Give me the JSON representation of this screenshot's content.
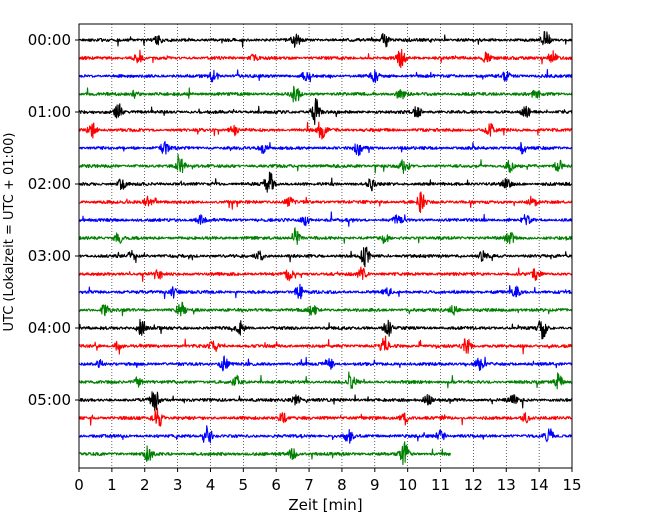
{
  "chart_data": {
    "type": "line",
    "xlabel": "Zeit  [min]",
    "ylabel": "UTC (Lokalzeit = UTC + 01:00)",
    "xlim": [
      0,
      15
    ],
    "x_ticks": [
      0,
      1,
      2,
      3,
      4,
      5,
      6,
      7,
      8,
      9,
      10,
      11,
      12,
      13,
      14,
      15
    ],
    "y_tick_labels": [
      {
        "label": "00:00",
        "trace": 0
      },
      {
        "label": "01:00",
        "trace": 4
      },
      {
        "label": "02:00",
        "trace": 8
      },
      {
        "label": "03:00",
        "trace": 12
      },
      {
        "label": "04:00",
        "trace": 16
      },
      {
        "label": "05:00",
        "trace": 20
      }
    ],
    "grid": "vertical dotted at each minute",
    "trace_colors": [
      "#000000",
      "#ff0000",
      "#0000ff",
      "#008000"
    ],
    "traces": [
      {
        "start": "00:00",
        "color": "#000000",
        "duration_min": 15,
        "events": [
          [
            2.4,
            0.4
          ],
          [
            6.6,
            0.7
          ],
          [
            9.3,
            0.8
          ],
          [
            14.2,
            0.9
          ]
        ]
      },
      {
        "start": "00:15",
        "color": "#ff0000",
        "duration_min": 15,
        "events": [
          [
            1.8,
            0.5
          ],
          [
            5.3,
            0.4
          ],
          [
            9.8,
            1.0
          ],
          [
            12.4,
            0.6
          ],
          [
            14.4,
            0.8
          ]
        ]
      },
      {
        "start": "00:30",
        "color": "#0000ff",
        "duration_min": 15,
        "events": [
          [
            4.1,
            0.7
          ],
          [
            6.9,
            0.5
          ],
          [
            9.0,
            0.6
          ],
          [
            13.0,
            0.5
          ]
        ]
      },
      {
        "start": "00:45",
        "color": "#008000",
        "duration_min": 15,
        "events": [
          [
            1.7,
            0.4
          ],
          [
            6.6,
            1.2
          ],
          [
            9.8,
            0.5
          ],
          [
            13.9,
            0.5
          ]
        ]
      },
      {
        "start": "01:00",
        "color": "#000000",
        "duration_min": 15,
        "events": [
          [
            1.2,
            0.9
          ],
          [
            7.2,
            1.4
          ],
          [
            10.3,
            0.7
          ],
          [
            13.6,
            0.6
          ]
        ]
      },
      {
        "start": "01:15",
        "color": "#ff0000",
        "duration_min": 15,
        "events": [
          [
            0.4,
            0.8
          ],
          [
            4.7,
            0.6
          ],
          [
            7.4,
            1.0
          ],
          [
            12.5,
            0.7
          ]
        ]
      },
      {
        "start": "01:30",
        "color": "#0000ff",
        "duration_min": 15,
        "events": [
          [
            2.6,
            0.6
          ],
          [
            5.6,
            0.5
          ],
          [
            8.5,
            0.7
          ],
          [
            13.5,
            0.6
          ]
        ]
      },
      {
        "start": "01:45",
        "color": "#008000",
        "duration_min": 15,
        "events": [
          [
            3.1,
            0.9
          ],
          [
            9.9,
            1.0
          ],
          [
            13.1,
            0.6
          ],
          [
            14.6,
            0.7
          ]
        ]
      },
      {
        "start": "02:00",
        "color": "#000000",
        "duration_min": 15,
        "events": [
          [
            1.3,
            0.5
          ],
          [
            5.8,
            1.3
          ],
          [
            8.9,
            0.6
          ],
          [
            13.0,
            0.5
          ]
        ]
      },
      {
        "start": "02:15",
        "color": "#ff0000",
        "duration_min": 15,
        "events": [
          [
            2.1,
            0.6
          ],
          [
            6.4,
            0.5
          ],
          [
            10.4,
            1.1
          ],
          [
            13.8,
            0.6
          ]
        ]
      },
      {
        "start": "02:30",
        "color": "#0000ff",
        "duration_min": 15,
        "events": [
          [
            3.7,
            0.5
          ],
          [
            6.9,
            0.6
          ],
          [
            9.7,
            0.5
          ],
          [
            13.6,
            0.5
          ]
        ]
      },
      {
        "start": "02:45",
        "color": "#008000",
        "duration_min": 15,
        "events": [
          [
            1.2,
            0.6
          ],
          [
            6.6,
            1.1
          ],
          [
            9.3,
            0.5
          ],
          [
            13.1,
            0.9
          ]
        ]
      },
      {
        "start": "03:00",
        "color": "#000000",
        "duration_min": 15,
        "events": [
          [
            1.6,
            0.5
          ],
          [
            5.5,
            0.5
          ],
          [
            8.7,
            1.1
          ],
          [
            12.3,
            0.5
          ]
        ]
      },
      {
        "start": "03:15",
        "color": "#ff0000",
        "duration_min": 15,
        "events": [
          [
            2.4,
            0.7
          ],
          [
            6.4,
            0.6
          ],
          [
            8.6,
            0.8
          ],
          [
            13.9,
            0.6
          ]
        ]
      },
      {
        "start": "03:30",
        "color": "#0000ff",
        "duration_min": 15,
        "events": [
          [
            2.9,
            0.6
          ],
          [
            6.7,
            0.8
          ],
          [
            9.4,
            0.5
          ],
          [
            13.3,
            0.5
          ]
        ]
      },
      {
        "start": "03:45",
        "color": "#008000",
        "duration_min": 15,
        "events": [
          [
            0.8,
            0.7
          ],
          [
            3.1,
            0.8
          ],
          [
            7.1,
            0.6
          ],
          [
            11.4,
            0.6
          ]
        ]
      },
      {
        "start": "04:00",
        "color": "#000000",
        "duration_min": 15,
        "events": [
          [
            1.9,
            1.0
          ],
          [
            4.9,
            0.7
          ],
          [
            9.4,
            0.9
          ],
          [
            14.1,
            1.3
          ]
        ]
      },
      {
        "start": "04:15",
        "color": "#ff0000",
        "duration_min": 15,
        "events": [
          [
            1.2,
            0.5
          ],
          [
            4.1,
            0.7
          ],
          [
            9.3,
            1.1
          ],
          [
            11.8,
            0.8
          ]
        ]
      },
      {
        "start": "04:30",
        "color": "#0000ff",
        "duration_min": 15,
        "events": [
          [
            0.6,
            0.5
          ],
          [
            4.4,
            0.9
          ],
          [
            7.6,
            0.7
          ],
          [
            12.2,
            0.7
          ]
        ]
      },
      {
        "start": "04:45",
        "color": "#008000",
        "duration_min": 15,
        "events": [
          [
            1.8,
            0.6
          ],
          [
            4.8,
            0.7
          ],
          [
            8.3,
            0.7
          ],
          [
            14.6,
            1.0
          ]
        ]
      },
      {
        "start": "05:00",
        "color": "#000000",
        "duration_min": 15,
        "events": [
          [
            2.3,
            1.3
          ],
          [
            6.6,
            0.7
          ],
          [
            10.6,
            0.6
          ],
          [
            13.2,
            0.6
          ]
        ]
      },
      {
        "start": "05:15",
        "color": "#ff0000",
        "duration_min": 15,
        "events": [
          [
            2.4,
            1.2
          ],
          [
            6.2,
            0.6
          ],
          [
            9.9,
            0.7
          ],
          [
            13.6,
            0.6
          ]
        ]
      },
      {
        "start": "05:30",
        "color": "#0000ff",
        "duration_min": 15,
        "events": [
          [
            3.9,
            1.4
          ],
          [
            8.2,
            0.7
          ],
          [
            11.0,
            0.7
          ],
          [
            14.3,
            0.9
          ]
        ]
      },
      {
        "start": "05:45",
        "color": "#008000",
        "duration_min": 11.3,
        "events": [
          [
            2.1,
            0.8
          ],
          [
            6.5,
            0.6
          ],
          [
            9.9,
            1.4
          ]
        ]
      }
    ]
  }
}
